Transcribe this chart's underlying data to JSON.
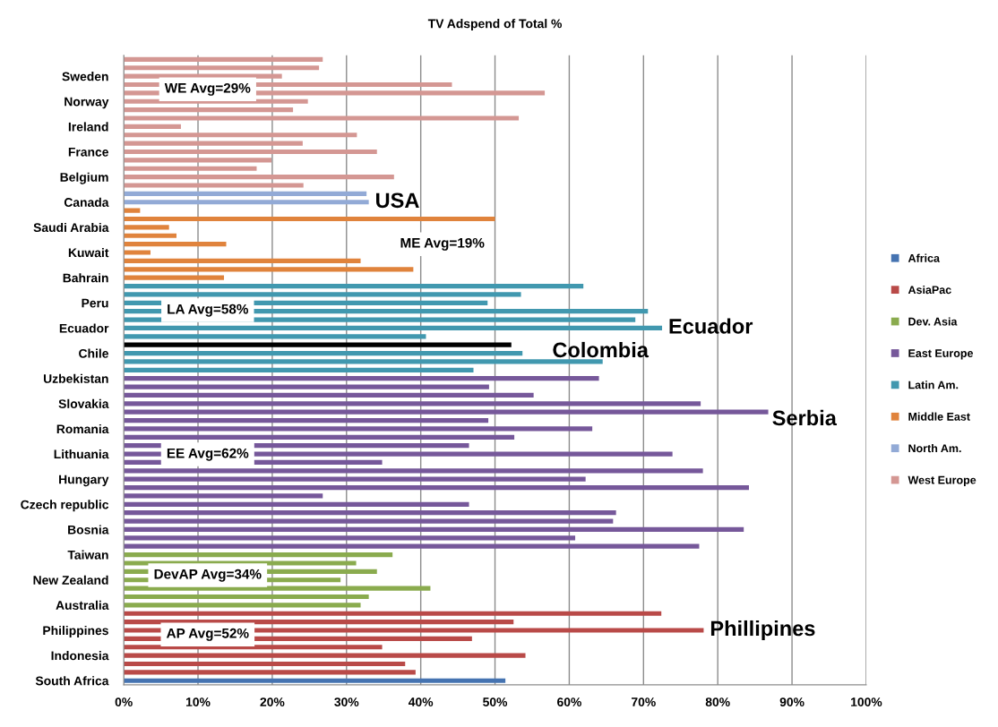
{
  "chart_data": {
    "type": "bar",
    "orientation": "horizontal",
    "title": "TV Adspend of Total %",
    "categories": [
      null,
      null,
      "Sweden",
      null,
      null,
      "Norway",
      null,
      null,
      "Ireland",
      null,
      null,
      "France",
      null,
      null,
      "Belgium",
      null,
      null,
      "Canada",
      null,
      null,
      "Saudi Arabia",
      null,
      null,
      "Kuwait",
      null,
      null,
      "Bahrain",
      null,
      null,
      "Peru",
      null,
      null,
      "Ecuador",
      null,
      null,
      "Chile",
      null,
      null,
      "Uzbekistan",
      null,
      null,
      "Slovakia",
      null,
      null,
      "Romania",
      null,
      null,
      "Lithuania",
      null,
      null,
      "Hungary",
      null,
      null,
      "Czech republic",
      null,
      null,
      "Bosnia",
      null,
      null,
      "Taiwan",
      null,
      null,
      "New Zealand",
      null,
      null,
      "Australia",
      null,
      null,
      "Philippines",
      null,
      null,
      "Indonesia",
      null,
      null,
      "South Africa"
    ],
    "series": [
      {
        "name": "Africa",
        "color": "#4573b1",
        "values": [
          null,
          null,
          null,
          null,
          null,
          null,
          null,
          null,
          null,
          null,
          null,
          null,
          null,
          null,
          null,
          null,
          null,
          null,
          null,
          null,
          null,
          null,
          null,
          null,
          null,
          null,
          null,
          null,
          null,
          null,
          null,
          null,
          null,
          null,
          null,
          null,
          null,
          null,
          null,
          null,
          null,
          null,
          null,
          null,
          null,
          null,
          null,
          null,
          null,
          null,
          null,
          null,
          null,
          null,
          null,
          null,
          null,
          null,
          null,
          null,
          null,
          null,
          null,
          null,
          null,
          null,
          null,
          null,
          null,
          null,
          null,
          null,
          null,
          null,
          51.4
        ]
      },
      {
        "name": "AsiaPac",
        "color": "#b94a48",
        "values": [
          null,
          null,
          null,
          null,
          null,
          null,
          null,
          null,
          null,
          null,
          null,
          null,
          null,
          null,
          null,
          null,
          null,
          null,
          null,
          null,
          null,
          null,
          null,
          null,
          null,
          null,
          null,
          null,
          null,
          null,
          null,
          null,
          null,
          null,
          null,
          null,
          null,
          null,
          null,
          null,
          null,
          null,
          null,
          null,
          null,
          null,
          null,
          null,
          null,
          null,
          null,
          null,
          null,
          null,
          null,
          null,
          null,
          null,
          null,
          null,
          null,
          null,
          null,
          null,
          null,
          null,
          72.4,
          52.5,
          78.1,
          46.9,
          34.8,
          54.1,
          37.9,
          39.3,
          null
        ]
      },
      {
        "name": "Dev. Asia",
        "color": "#8aab4e",
        "values": [
          null,
          null,
          null,
          null,
          null,
          null,
          null,
          null,
          null,
          null,
          null,
          null,
          null,
          null,
          null,
          null,
          null,
          null,
          null,
          null,
          null,
          null,
          null,
          null,
          null,
          null,
          null,
          null,
          null,
          null,
          null,
          null,
          null,
          null,
          null,
          null,
          null,
          null,
          null,
          null,
          null,
          null,
          null,
          null,
          null,
          null,
          null,
          null,
          null,
          null,
          null,
          null,
          null,
          null,
          null,
          null,
          null,
          null,
          null,
          36.2,
          31.3,
          34.1,
          29.2,
          41.3,
          33.0,
          31.9,
          null,
          null,
          null,
          null,
          null,
          null,
          null,
          null,
          null
        ]
      },
      {
        "name": "East Europe",
        "color": "#76589a",
        "values": [
          null,
          null,
          null,
          null,
          null,
          null,
          null,
          null,
          null,
          null,
          null,
          null,
          null,
          null,
          null,
          null,
          null,
          null,
          null,
          null,
          null,
          null,
          null,
          null,
          null,
          null,
          null,
          null,
          null,
          null,
          null,
          null,
          null,
          null,
          null,
          null,
          null,
          null,
          64.0,
          49.2,
          55.2,
          77.7,
          86.8,
          49.1,
          63.1,
          52.6,
          46.5,
          73.9,
          34.8,
          78.0,
          62.2,
          84.2,
          26.8,
          46.5,
          66.3,
          65.9,
          83.5,
          60.8,
          77.5,
          null,
          null,
          null,
          null,
          null,
          null,
          null,
          null,
          null,
          null,
          null,
          null,
          null,
          null,
          null,
          null
        ]
      },
      {
        "name": "Latin Am.",
        "color": "#4198af",
        "values": [
          null,
          null,
          null,
          null,
          null,
          null,
          null,
          null,
          null,
          null,
          null,
          null,
          null,
          null,
          null,
          null,
          null,
          null,
          null,
          null,
          null,
          null,
          null,
          null,
          null,
          null,
          null,
          61.9,
          53.5,
          49.0,
          70.6,
          68.9,
          72.5,
          40.7,
          null,
          53.7,
          64.5,
          47.1,
          null,
          null,
          null,
          null,
          null,
          null,
          null,
          null,
          null,
          null,
          null,
          null,
          null,
          null,
          null,
          null,
          null,
          null,
          null,
          null,
          null,
          null,
          null,
          null,
          null,
          null,
          null,
          null,
          null,
          null,
          null,
          null,
          null,
          null,
          null,
          null,
          null
        ]
      },
      {
        "name": "Middle East",
        "color": "#e0833c",
        "values": [
          null,
          null,
          null,
          null,
          null,
          null,
          null,
          null,
          null,
          null,
          null,
          null,
          null,
          null,
          null,
          null,
          null,
          null,
          2.2,
          50.0,
          6.1,
          7.1,
          13.8,
          3.6,
          31.9,
          39.0,
          13.5,
          null,
          null,
          null,
          null,
          null,
          null,
          null,
          null,
          null,
          null,
          null,
          null,
          null,
          null,
          null,
          null,
          null,
          null,
          null,
          null,
          null,
          null,
          null,
          null,
          null,
          null,
          null,
          null,
          null,
          null,
          null,
          null,
          null,
          null,
          null,
          null,
          null,
          null,
          null,
          null,
          null,
          null,
          null,
          null,
          null,
          null,
          null,
          null
        ]
      },
      {
        "name": "North Am.",
        "color": "#92aad6",
        "values": [
          null,
          null,
          null,
          null,
          null,
          null,
          null,
          null,
          null,
          null,
          null,
          null,
          null,
          null,
          null,
          null,
          32.7,
          33.0,
          null,
          null,
          null,
          null,
          null,
          null,
          null,
          null,
          null,
          null,
          null,
          null,
          null,
          null,
          null,
          null,
          null,
          null,
          null,
          null,
          null,
          null,
          null,
          null,
          null,
          null,
          null,
          null,
          null,
          null,
          null,
          null,
          null,
          null,
          null,
          null,
          null,
          null,
          null,
          null,
          null,
          null,
          null,
          null,
          null,
          null,
          null,
          null,
          null,
          null,
          null,
          null,
          null,
          null,
          null,
          null,
          null
        ]
      },
      {
        "name": "West Europe",
        "color": "#d49793",
        "values": [
          26.8,
          26.3,
          21.3,
          44.2,
          56.7,
          24.8,
          22.8,
          53.2,
          7.7,
          31.4,
          24.1,
          34.1,
          19.9,
          17.9,
          36.4,
          24.2,
          null,
          null,
          null,
          null,
          null,
          null,
          null,
          null,
          null,
          null,
          null,
          null,
          null,
          null,
          null,
          null,
          null,
          null,
          null,
          null,
          null,
          null,
          null,
          null,
          null,
          null,
          null,
          null,
          null,
          null,
          null,
          null,
          null,
          null,
          null,
          null,
          null,
          null,
          null,
          null,
          null,
          null,
          null,
          null,
          null,
          null,
          null,
          null,
          null,
          null,
          null,
          null,
          null,
          null,
          null,
          null,
          null,
          null,
          null
        ]
      },
      {
        "color": "#000000",
        "values": [
          null,
          null,
          null,
          null,
          null,
          null,
          null,
          null,
          null,
          null,
          null,
          null,
          null,
          null,
          null,
          null,
          null,
          null,
          null,
          null,
          null,
          null,
          null,
          null,
          null,
          null,
          null,
          null,
          null,
          null,
          null,
          null,
          null,
          null,
          52.2,
          null,
          null,
          null,
          null,
          null,
          null,
          null,
          null,
          null,
          null,
          null,
          null,
          null,
          null,
          null,
          null,
          null,
          null,
          null,
          null,
          null,
          null,
          null,
          null,
          null,
          null,
          null,
          null,
          null,
          null,
          null,
          null,
          null,
          null,
          null,
          null,
          null,
          null,
          null,
          null
        ]
      }
    ],
    "xlim": [
      0,
      100
    ],
    "xticks": [
      {
        "value": 0,
        "label": "0%"
      },
      {
        "value": 10,
        "label": "10%"
      },
      {
        "value": 20,
        "label": "20%"
      },
      {
        "value": 30,
        "label": "30%"
      },
      {
        "value": 40,
        "label": "40%"
      },
      {
        "value": 50,
        "label": "50%"
      },
      {
        "value": 60,
        "label": "60%"
      },
      {
        "value": 70,
        "label": "70%"
      },
      {
        "value": 80,
        "label": "80%"
      },
      {
        "value": 90,
        "label": "90%"
      },
      {
        "value": 100,
        "label": "100%"
      }
    ],
    "grid": "x",
    "legend": "right",
    "annotations": [
      "WE Avg=29%",
      "ME Avg=19%",
      "LA Avg=58%",
      "EE Avg=62%",
      "DevAP Avg=34%",
      "AP Avg=52%",
      "Colombia",
      "Serbia",
      {
        "text": "USA",
        "x": 33.0,
        "y": "Canada"
      },
      {
        "text": "Ecuador",
        "x": 72.5,
        "y": "Ecuador"
      },
      {
        "text": "Phillipines",
        "x": 78.1,
        "y": "Philippines"
      }
    ]
  }
}
